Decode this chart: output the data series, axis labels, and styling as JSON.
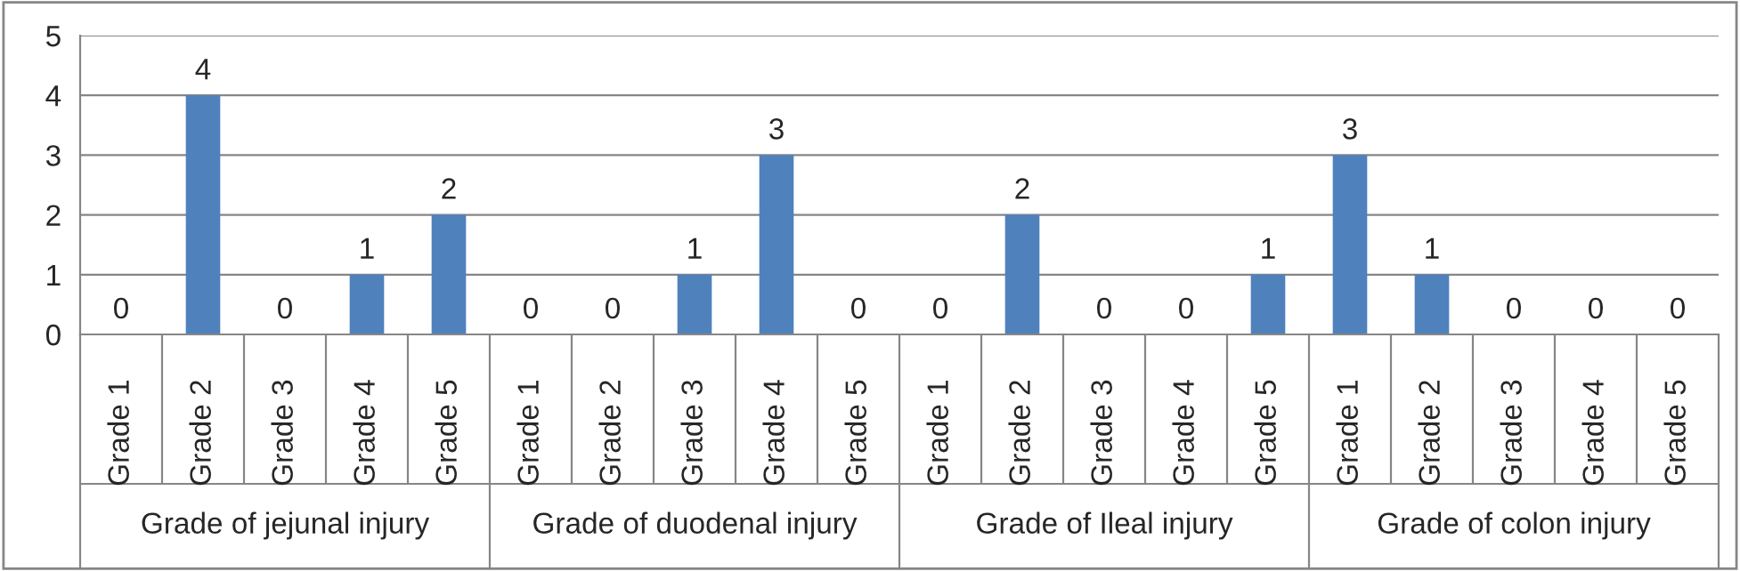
{
  "chart_data": {
    "type": "bar",
    "categories": [
      "Grade 1",
      "Grade 2",
      "Grade 3",
      "Grade 4",
      "Grade 5",
      "Grade 1",
      "Grade 2",
      "Grade 3",
      "Grade 4",
      "Grade 5",
      "Grade 1",
      "Grade 2",
      "Grade 3",
      "Grade 4",
      "Grade 5",
      "Grade 1",
      "Grade 2",
      "Grade 3",
      "Grade 4",
      "Grade 5"
    ],
    "values": [
      0,
      4,
      0,
      1,
      2,
      0,
      0,
      1,
      3,
      0,
      0,
      2,
      0,
      0,
      1,
      3,
      1,
      0,
      0,
      0
    ],
    "color": "#4f81bd",
    "ylim": [
      0,
      5
    ],
    "yticks": [
      0,
      1,
      2,
      3,
      4,
      5
    ],
    "grid": "y",
    "data_labels": true,
    "annotations": [
      "Grade of jejunal injury",
      "Grade of duodenal injury",
      "Grade of Ileal injury",
      "Grade of colon injury"
    ]
  }
}
